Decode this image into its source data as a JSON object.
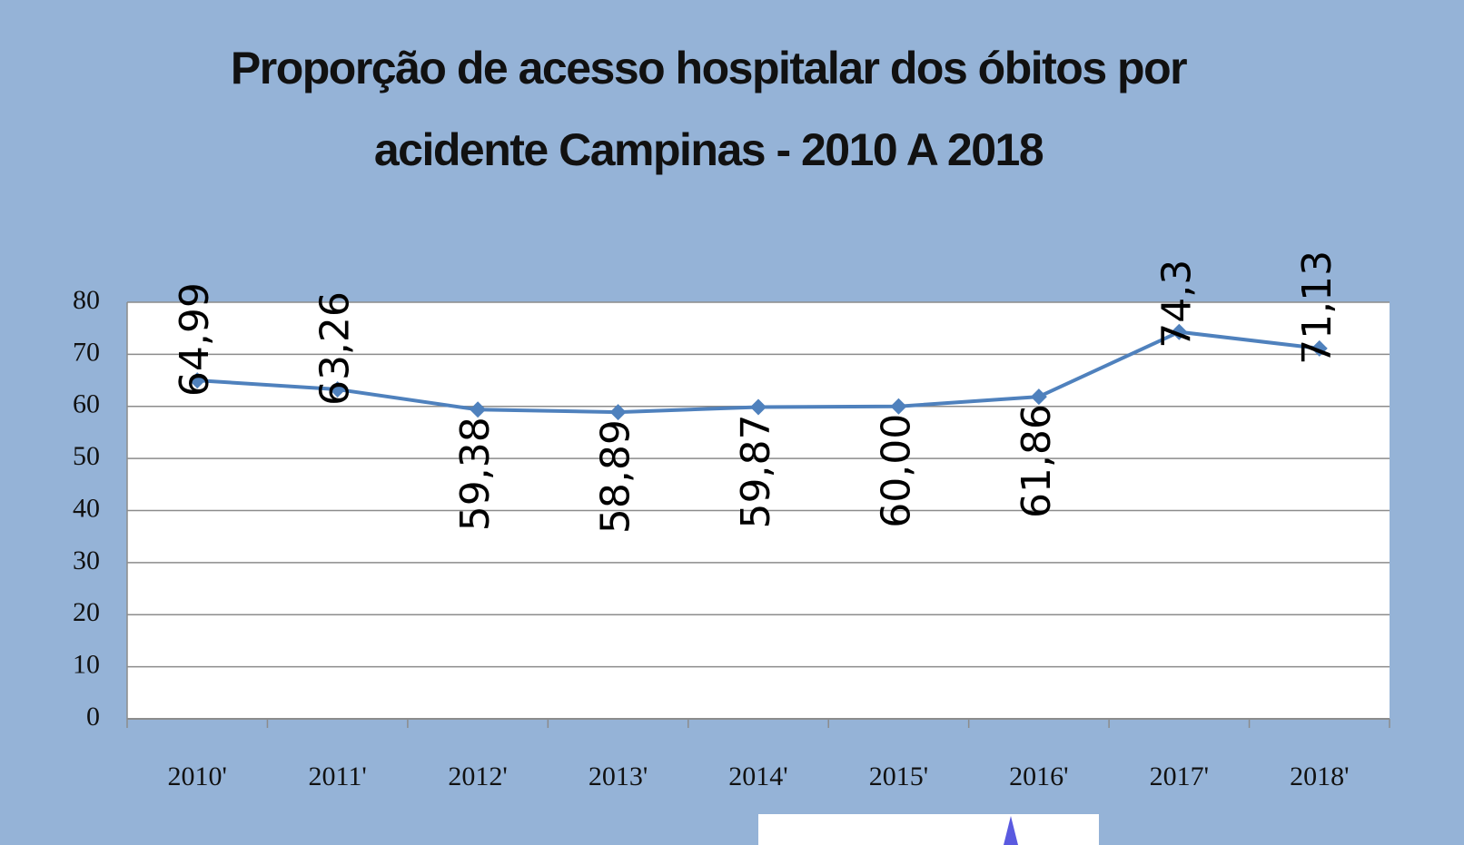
{
  "chart_data": {
    "type": "line",
    "title": "Proporção de acesso hospitalar dos óbitos por\nacidente Campinas  - 2010 A 2018",
    "categories": [
      "2010'",
      "2011'",
      "2012'",
      "2013'",
      "2014'",
      "2015'",
      "2016'",
      "2017'",
      "2018'"
    ],
    "series": [
      {
        "name": null,
        "color": "#4f81bd",
        "values": [
          64.99,
          63.26,
          59.38,
          58.89,
          59.87,
          60.0,
          61.86,
          74.3,
          71.13
        ],
        "value_labels": [
          "64,99",
          "63,26",
          "59,38",
          "58,89",
          "59,87",
          "60,00",
          "61,86",
          "74,3",
          "71,13"
        ]
      }
    ],
    "ylim": [
      0,
      80
    ],
    "yticks": [
      0,
      10,
      20,
      30,
      40,
      50,
      60,
      70,
      80
    ],
    "grid": true
  }
}
